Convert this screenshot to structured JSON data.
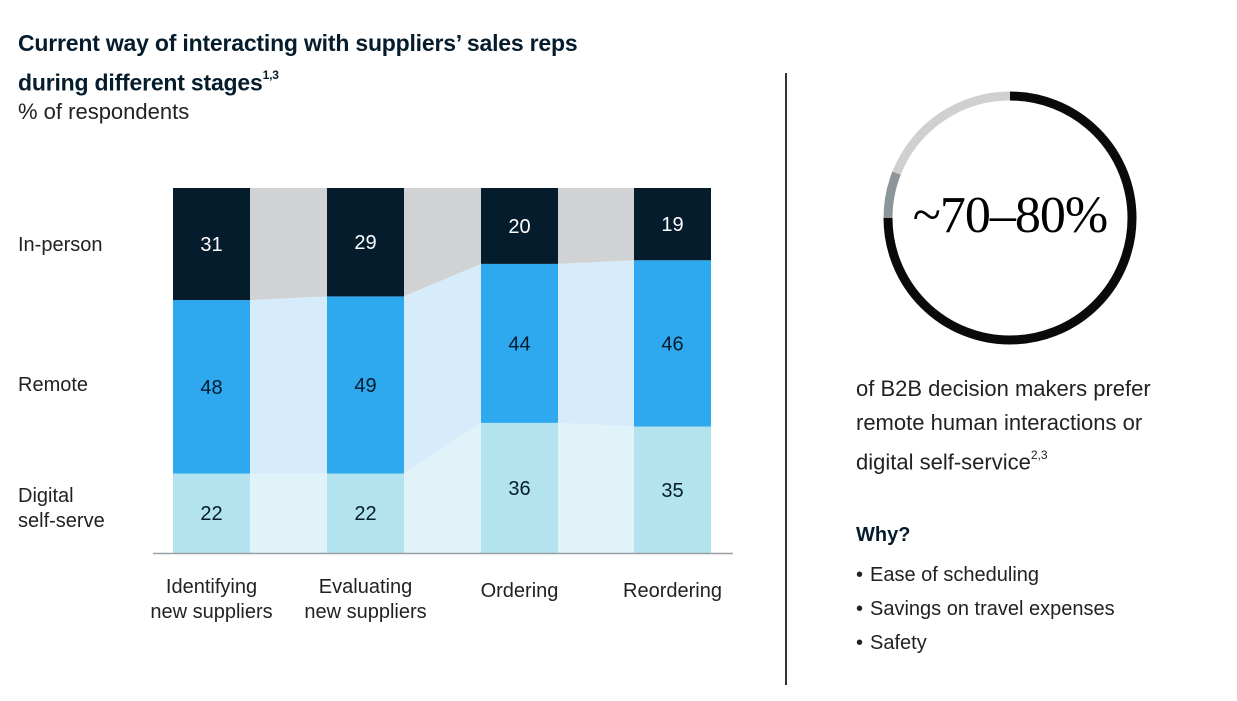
{
  "header": {
    "title_line1": "Current way of interacting with suppliers’ sales reps",
    "title_line2": "during different stages",
    "title_sup": "1,3",
    "subtitle": "% of respondents"
  },
  "chart_data": {
    "type": "bar",
    "stacked": true,
    "title": "Current way of interacting with suppliers’ sales reps during different stages",
    "ylabel": "% of respondents",
    "categories": [
      [
        "Identifying",
        "new suppliers"
      ],
      [
        "Evaluating",
        "new suppliers"
      ],
      [
        "Ordering"
      ],
      [
        "Reordering"
      ]
    ],
    "series": [
      {
        "name": "Digital self-serve",
        "label_lines": [
          "Digital",
          "self-serve"
        ],
        "values": [
          22,
          22,
          36,
          35
        ],
        "color": "#b3e3ee",
        "band_color": "#e0f3f8",
        "text_color": "#051c2c"
      },
      {
        "name": "Remote",
        "label_lines": [
          "Remote"
        ],
        "values": [
          48,
          49,
          44,
          46
        ],
        "color": "#2ea8ef",
        "band_color": "#d6ecfa",
        "text_color": "#051c2c"
      },
      {
        "name": "In-person",
        "label_lines": [
          "In-person"
        ],
        "values": [
          31,
          29,
          20,
          19
        ],
        "color": "#051c2c",
        "band_color": "#d0d2d4",
        "text_color": "#ffffff"
      }
    ],
    "ylim": [
      0,
      101
    ]
  },
  "highlight": {
    "range": "~70–80%",
    "ring_segments": [
      {
        "name": "prefer-remote-or-digital",
        "fraction": 0.75,
        "color": "#0a0a0a"
      },
      {
        "name": "gray-mid",
        "fraction": 0.06,
        "color": "#8c9599"
      },
      {
        "name": "gray-light",
        "fraction": 0.19,
        "color": "#d0d0d0"
      }
    ],
    "description_lines": [
      "of B2B decision makers prefer",
      "remote human interactions or",
      "digital self-service"
    ],
    "description_sup": "2,3"
  },
  "why": {
    "heading": "Why?",
    "reasons": [
      "Ease of scheduling",
      "Savings on travel expenses",
      "Safety"
    ]
  }
}
